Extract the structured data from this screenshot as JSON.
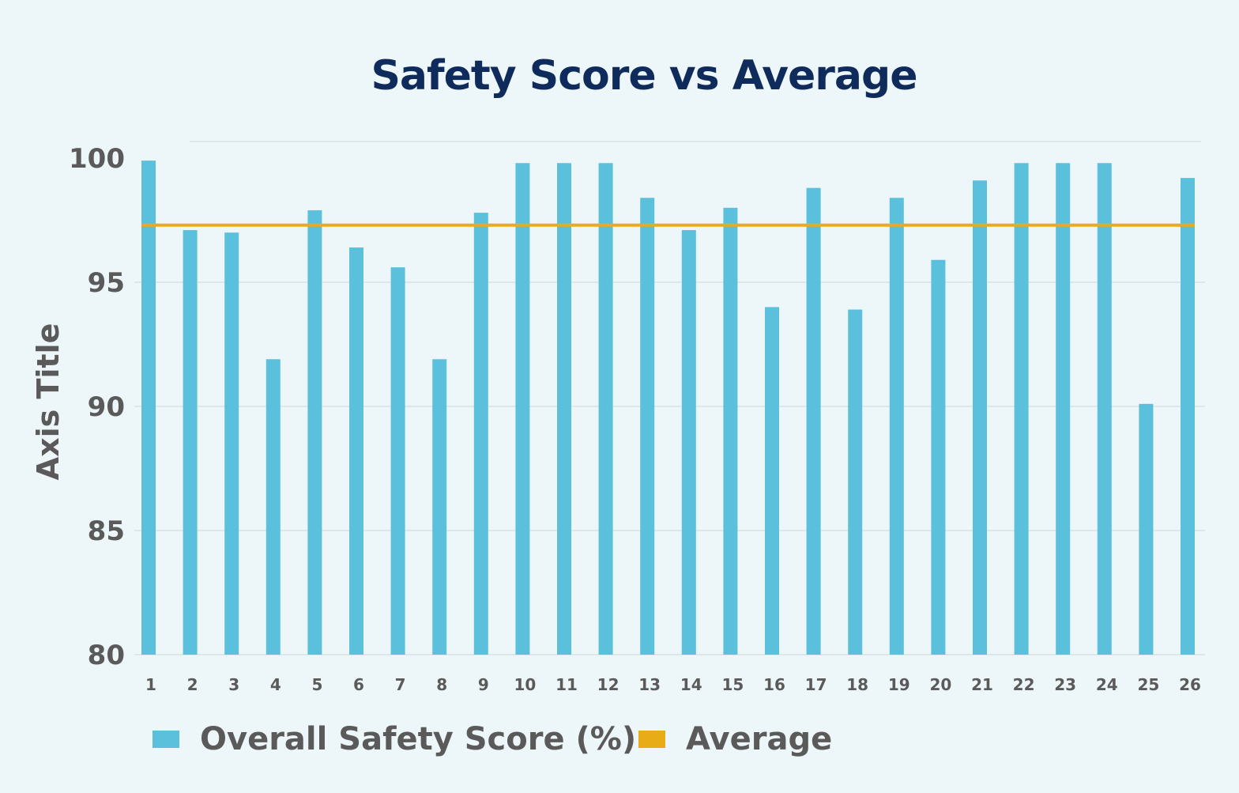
{
  "chart_data": {
    "type": "bar",
    "title": "Safety Score vs Average",
    "xlabel": "",
    "ylabel": "Axis Title",
    "categories": [
      "1",
      "2",
      "3",
      "4",
      "5",
      "6",
      "7",
      "8",
      "9",
      "10",
      "11",
      "12",
      "13",
      "14",
      "15",
      "16",
      "17",
      "18",
      "19",
      "20",
      "21",
      "22",
      "23",
      "24",
      "25",
      "26"
    ],
    "series": [
      {
        "name": "Overall Safety Score (%)",
        "type": "bar",
        "color": "#5bc0dc",
        "values": [
          99.9,
          97.1,
          97.0,
          91.9,
          97.9,
          96.4,
          95.6,
          91.9,
          97.8,
          99.8,
          99.8,
          99.8,
          98.4,
          97.1,
          98.0,
          94.0,
          98.8,
          93.9,
          98.4,
          95.9,
          99.1,
          99.8,
          99.8,
          99.8,
          90.1,
          99.2
        ]
      },
      {
        "name": "Average",
        "type": "line",
        "color": "#e8ad16",
        "value": 97.3
      }
    ],
    "ylim": [
      80,
      100
    ],
    "yticks": [
      80,
      85,
      90,
      95,
      100
    ],
    "grid": true,
    "legend": "bottom"
  }
}
